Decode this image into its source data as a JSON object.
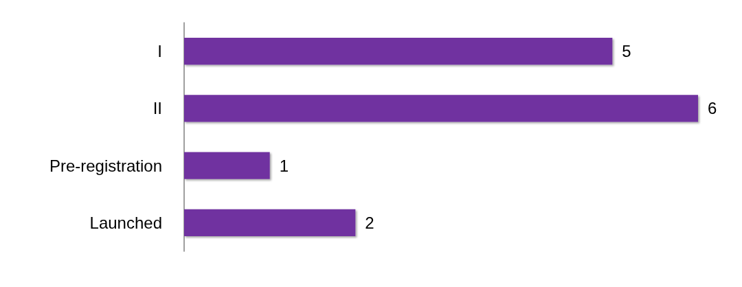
{
  "chart_data": {
    "type": "bar",
    "orientation": "horizontal",
    "categories": [
      "I",
      "II",
      "Pre-registration",
      "Launched"
    ],
    "values": [
      5,
      6,
      1,
      2
    ],
    "color": "#7030a0",
    "data_labels": true
  }
}
